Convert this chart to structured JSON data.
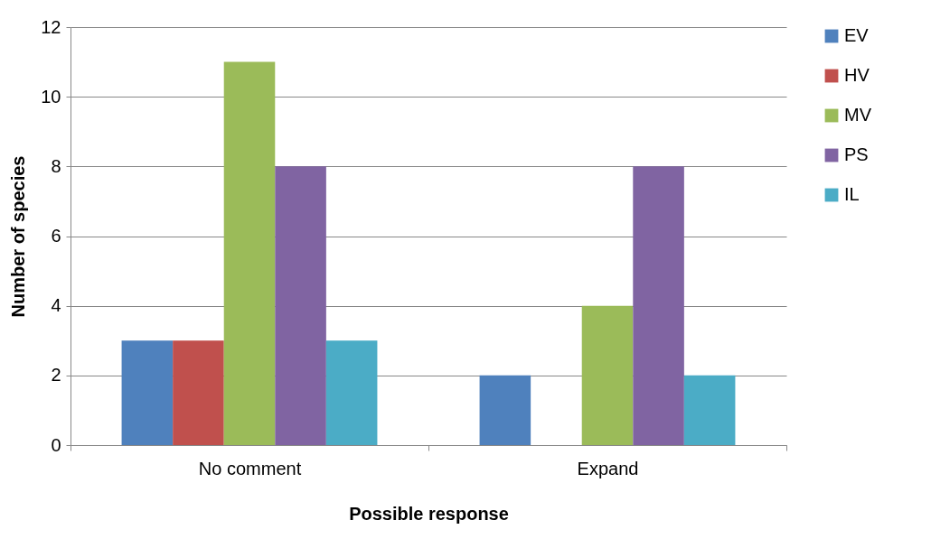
{
  "chart_data": {
    "type": "bar",
    "xlabel": "Possible response",
    "ylabel": "Number of species",
    "categories": [
      "No comment",
      "Expand"
    ],
    "series": [
      {
        "name": "EV",
        "color": "#4f81bd",
        "values": [
          3,
          2
        ]
      },
      {
        "name": "HV",
        "color": "#c0504d",
        "values": [
          3,
          0
        ]
      },
      {
        "name": "MV",
        "color": "#9bbb59",
        "values": [
          11,
          4
        ]
      },
      {
        "name": "PS",
        "color": "#8064a2",
        "values": [
          8,
          8
        ]
      },
      {
        "name": "IL",
        "color": "#4bacc6",
        "values": [
          3,
          2
        ]
      }
    ],
    "ylim": [
      0,
      12
    ],
    "yticks": [
      0,
      2,
      4,
      6,
      8,
      10,
      12
    ],
    "grid": "y",
    "legend": "right"
  }
}
